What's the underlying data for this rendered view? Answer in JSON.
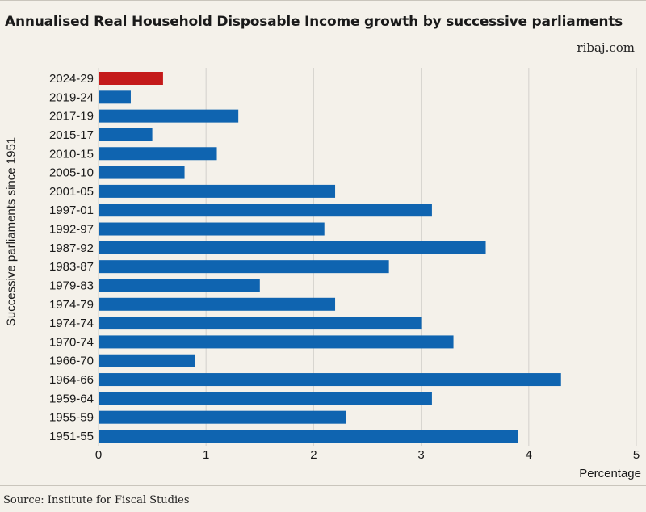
{
  "chart_data": {
    "type": "bar",
    "orientation": "horizontal",
    "title": "Annualised Real Household Disposable Income growth by successive parliaments",
    "xlabel": "Percentage",
    "ylabel": "Successive parliaments since 1951",
    "xlim": [
      0,
      5
    ],
    "xticks": [
      0,
      1,
      2,
      3,
      4,
      5
    ],
    "grid": true,
    "categories": [
      "2024-29",
      "2019-24",
      "2017-19",
      "2015-17",
      "2010-15",
      "2005-10",
      "2001-05",
      "1997-01",
      "1992-97",
      "1987-92",
      "1983-87",
      "1979-83",
      "1974-79",
      "1974-74",
      "1970-74",
      "1966-70",
      "1964-66",
      "1959-64",
      "1955-59",
      "1951-55"
    ],
    "values": [
      0.6,
      0.3,
      1.3,
      0.5,
      1.1,
      0.8,
      2.2,
      3.1,
      2.1,
      3.6,
      2.7,
      1.5,
      2.2,
      3.0,
      3.3,
      0.9,
      4.3,
      3.1,
      2.3,
      3.9
    ],
    "colors": {
      "highlight": "#c41a1a",
      "default": "#0f64b0",
      "grid": "#d8d6d0"
    },
    "highlight_category": "2024-29"
  },
  "brand": "ribaj.com",
  "source": "Source: Institute for Fiscal Studies"
}
